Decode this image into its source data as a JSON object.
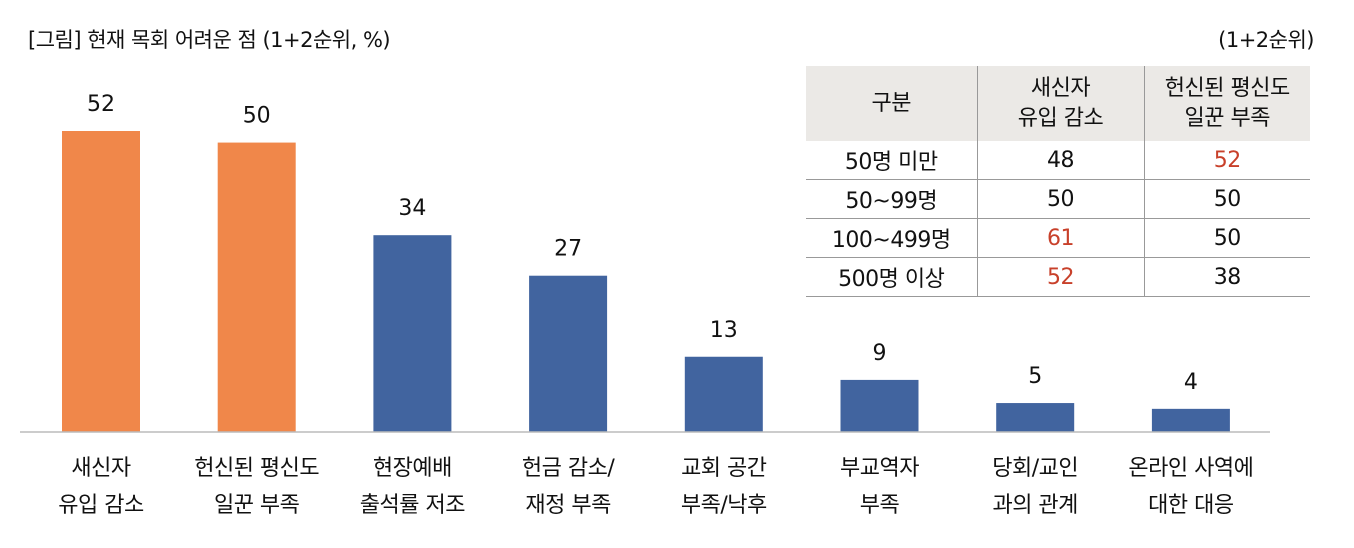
{
  "title": "[그림] 현재 목회 어려운 점 (1+2순위, %)",
  "unit_note": "(1+2순위)",
  "colors": {
    "highlight_bar": "#f0874a",
    "bar": "#41649f",
    "highlight_text": "#c8402a",
    "table_header_bg": "#ebe9e6"
  },
  "chart_data": {
    "type": "bar",
    "title": "[그림] 현재 목회 어려운 점 (1+2순위, %)",
    "categories": [
      "새신자\n유입 감소",
      "헌신된 평신도\n일꾼 부족",
      "현장예배\n출석률 저조",
      "헌금 감소/\n재정 부족",
      "교회 공간\n부족/낙후",
      "부교역자\n부족",
      "당회/교인\n과의 관계",
      "온라인 사역에\n대한 대응"
    ],
    "values": [
      52,
      50,
      34,
      27,
      13,
      9,
      5,
      4
    ],
    "highlighted": [
      true,
      true,
      false,
      false,
      false,
      false,
      false,
      false
    ],
    "ylim": [
      0,
      52
    ],
    "grid": false
  },
  "table": {
    "headers": [
      "구분",
      "새신자\n유입 감소",
      "헌신된 평신도\n일꾼 부족"
    ],
    "rows": [
      {
        "label": "50명 미만",
        "values": [
          "48",
          "52"
        ],
        "highlight": [
          false,
          true
        ]
      },
      {
        "label": "50~99명",
        "values": [
          "50",
          "50"
        ],
        "highlight": [
          false,
          false
        ]
      },
      {
        "label": "100~499명",
        "values": [
          "61",
          "50"
        ],
        "highlight": [
          true,
          false
        ]
      },
      {
        "label": "500명 이상",
        "values": [
          "52",
          "38"
        ],
        "highlight": [
          true,
          false
        ]
      }
    ]
  }
}
